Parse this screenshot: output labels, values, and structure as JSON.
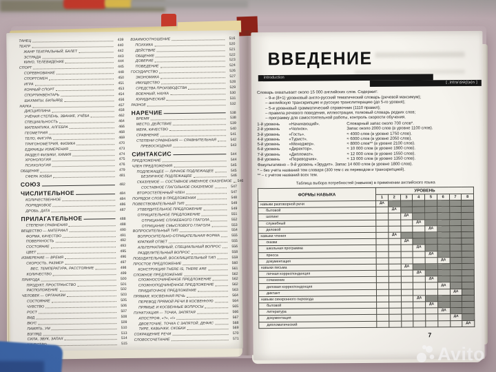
{
  "palette": {
    "bg": "#c7b5ba",
    "page": "#f3f1ea",
    "ink": "#262626",
    "bar": "#161616",
    "red": "#c5392b",
    "blue": "#3c69ae",
    "cell-dark": "#8f9089",
    "cell-light": "#f2f0e9",
    "wm": "rgba(255,255,255,0.85)"
  },
  "watermark": {
    "brand": "Avito"
  },
  "left_page": {
    "toc_col1": [
      {
        "t": "ТАНЕЦ",
        "p": "439",
        "s": "0"
      },
      {
        "t": "ТЕАТР",
        "p": "440",
        "s": "0"
      },
      {
        "t": "ЖАНР ТЕАТРАЛЬНЫЙ, БАЛЕТ",
        "p": "442",
        "s": "1"
      },
      {
        "t": "ЭСТРАДА",
        "p": "443",
        "s": "1"
      },
      {
        "t": "КИНО, ТЕЛЕВИДЕНИЕ",
        "p": "444",
        "s": "1"
      },
      {
        "t": "СПОРТ",
        "p": "445",
        "s": "0"
      },
      {
        "t": "СОРЕВНОВАНИЕ",
        "p": "448",
        "s": "1"
      },
      {
        "t": "СПОРТСМЕН",
        "p": "450",
        "s": "1"
      },
      {
        "t": "ИГРА",
        "p": "451",
        "s": "1"
      },
      {
        "t": "КОННЫЙ СПОРТ",
        "p": "453",
        "s": "1"
      },
      {
        "t": "СПОРТИНВЕНТАРЬ",
        "p": "454",
        "s": "1"
      },
      {
        "t": "ШАХМАТЫ, БИЛЬЯРД",
        "p": "456",
        "s": "1"
      },
      {
        "t": "НАУКА",
        "p": "457",
        "s": "0"
      },
      {
        "t": "ДИСЦИПЛИНА",
        "p": "458",
        "s": "1"
      },
      {
        "t": "УЧЁНАЯ СТЕПЕНЬ, ЗВАНИЕ, УЧЁБА",
        "p": "462",
        "s": "1"
      },
      {
        "t": "СПЕЦИАЛЬНОСТЬ",
        "p": "464",
        "s": "1"
      },
      {
        "t": "МАТЕМАТИКА, АЛГЕБРА",
        "p": "466",
        "s": "1"
      },
      {
        "t": "ГЕОМЕТРИЯ",
        "p": "468",
        "s": "1"
      },
      {
        "t": "ТЕЛО, ФИГУРА",
        "p": "469",
        "s": "1"
      },
      {
        "t": "ТРИГОНОМЕТРИЯ, ФИЗИКА",
        "p": "470",
        "s": "1"
      },
      {
        "t": "ЕДИНИЦЫ ИЗМЕРЕНИЯ",
        "p": "473",
        "s": "1"
      },
      {
        "t": "РАЗДЕЛ ФИЗИКИ, ХИМИЯ",
        "p": "474",
        "s": "1"
      },
      {
        "t": "ХРОНОЛОГИЯ",
        "p": "475",
        "s": "1"
      },
      {
        "t": "ПСИХОЛОГИЯ",
        "p": "476",
        "s": "1"
      },
      {
        "t": "ОБЩЕНИЕ",
        "p": "479",
        "s": "0"
      },
      {
        "t": "СФЕРА ХОББИ",
        "p": "481",
        "s": "1"
      },
      {
        "t": "СОЮЗ",
        "p": "482",
        "s": "h"
      },
      {
        "t": "ЧИСЛИТЕЛЬНОЕ",
        "p": "484",
        "s": "h"
      },
      {
        "t": "КОЛИЧЕСТВЕННОЕ",
        "p": "484",
        "s": "1"
      },
      {
        "t": "ПОРЯДКОВОЕ",
        "p": "486",
        "s": "1"
      },
      {
        "t": "ДРОБЬ, ДАТА",
        "p": "487",
        "s": "1"
      },
      {
        "t": "ПРИЛАГАТЕЛЬНОЕ",
        "p": "488",
        "s": "h"
      },
      {
        "t": "СТЕПЕНИ СРАВНЕНИЯ",
        "p": "488",
        "s": "1"
      },
      {
        "t": "ВЕЩЕСТВО — МАТЕРИАЛ",
        "p": "490",
        "s": "0"
      },
      {
        "t": "ФОРМА, КАЧЕСТВО",
        "p": "491",
        "s": "1"
      },
      {
        "t": "ПОВЕРХНОСТЬ",
        "p": "492",
        "s": "1"
      },
      {
        "t": "СОСТОЯНИЕ",
        "p": "493",
        "s": "1"
      },
      {
        "t": "ЦВЕТ",
        "p": "495",
        "s": "1"
      },
      {
        "t": "ИЗМЕРЕНИЕ — ВРЕМЯ",
        "p": "496",
        "s": "0"
      },
      {
        "t": "СКОРОСТЬ, РАЗМЕР",
        "p": "497",
        "s": "1"
      },
      {
        "t": "ВЕС, ТЕМПЕРАТУРА, РАССТОЯНИЕ",
        "p": "498",
        "s": "2"
      },
      {
        "t": "КОЛИЧЕСТВО",
        "p": "499",
        "s": "1"
      },
      {
        "t": "ПРИРОДА",
        "p": "500",
        "s": "0"
      },
      {
        "t": "ПРОДУКТ, ПРОСТРАНСТВО",
        "p": "501",
        "s": "1"
      },
      {
        "t": "РАСПОЛОЖЕНИЕ",
        "p": "502",
        "s": "1"
      },
      {
        "t": "ЧЕЛОВЕК — ОРГАНИЗМ",
        "p": "503",
        "s": "0"
      },
      {
        "t": "СОСТОЯНИЕ",
        "p": "505",
        "s": "1"
      },
      {
        "t": "ЧУВСТВО",
        "p": "506",
        "s": "1"
      },
      {
        "t": "РОСТ",
        "p": "507",
        "s": "1"
      },
      {
        "t": "ВИД",
        "p": "508",
        "s": "1"
      },
      {
        "t": "ВКУС",
        "p": "509",
        "s": "1"
      },
      {
        "t": "ПАМЯТЬ, УМ",
        "p": "510",
        "s": "1"
      },
      {
        "t": "ВЗГЛЯД",
        "p": "513",
        "s": "1"
      },
      {
        "t": "СИЛА, ЗВУК, ЗАПАХ",
        "p": "514",
        "s": "1"
      },
      {
        "t": "КАЧЕСТВО",
        "p": "515",
        "s": "1"
      }
    ],
    "toc_col2": [
      {
        "t": "ВЗАИМООТНОШЕНИЕ",
        "p": "516",
        "s": "0"
      },
      {
        "t": "ПСИХИКА",
        "p": "520",
        "s": "1"
      },
      {
        "t": "ДЕЙСТВИЕ",
        "p": "521",
        "s": "1"
      },
      {
        "t": "ОБЩЕНИЕ",
        "p": "522",
        "s": "1"
      },
      {
        "t": "ДОВЕРИЕ",
        "p": "523",
        "s": "1"
      },
      {
        "t": "ПОВЕДЕНИЕ",
        "p": "524",
        "s": "1"
      },
      {
        "t": "ГОСУДАРСТВО",
        "p": "526",
        "s": "0"
      },
      {
        "t": "ЭКОНОМИКА",
        "p": "527",
        "s": "1"
      },
      {
        "t": "ИМУЩЕСТВО",
        "p": "528",
        "s": "1"
      },
      {
        "t": "СРЕДСТВА ПРОИЗВОДСТВА",
        "p": "529",
        "s": "1"
      },
      {
        "t": "ВОЕННЫЙ, НАУКА",
        "p": "530",
        "s": "1"
      },
      {
        "t": "ЮРИДИЧЕСКИЙ",
        "p": "531",
        "s": "1"
      },
      {
        "t": "РАЗНОЕ",
        "p": "532",
        "s": "0"
      },
      {
        "t": "НАРЕЧИЕ",
        "p": "538",
        "s": "h"
      },
      {
        "t": "ВРЕМЯ",
        "p": "538",
        "s": "1"
      },
      {
        "t": "МЕСТО, ДЕЙСТВИЕ",
        "p": "539",
        "s": "1"
      },
      {
        "t": "МЕРА, КАЧЕСТВО",
        "p": "540",
        "s": "1"
      },
      {
        "t": "СРАВНЕНИЕ",
        "p": "541",
        "s": "1"
      },
      {
        "t": "СТЕПЕНИ СРАВНЕНИЯ — СРАВНИТЕЛЬНАЯ",
        "p": "542",
        "s": "1"
      },
      {
        "t": "ПРЕВОСХОДНАЯ",
        "p": "543",
        "s": "2"
      },
      {
        "t": "СИНТАКСИС",
        "p": "544",
        "s": "h"
      },
      {
        "t": "ПРЕДЛОЖЕНИЕ",
        "p": "544",
        "s": "0"
      },
      {
        "t": "ЧЛЕН ПРЕДЛОЖЕНИЯ",
        "p": "545",
        "s": "0"
      },
      {
        "t": "ПОДЛЕЖАЩЕЕ — ЛИЧНОЕ ПОДЛЕЖАЩЕЕ",
        "p": "545",
        "s": "1"
      },
      {
        "t": "БЕЗЛИЧНОЕ ПОДЛЕЖАЩЕЕ",
        "p": "546",
        "s": "2"
      },
      {
        "t": "СКАЗУЕМОЕ — СОСТАВНОЕ ИМЕННОЕ СКАЗУЕМОЕ",
        "p": "546",
        "s": "1"
      },
      {
        "t": "СОСТАВНОЕ ГЛАГОЛЬНОЕ СКАЗУЕМОЕ",
        "p": "547",
        "s": "2"
      },
      {
        "t": "ВТОРОСТЕПЕННЫЙ ЧЛЕН",
        "p": "547",
        "s": "1"
      },
      {
        "t": "ПОРЯДОК СЛОВ В ПРЕДЛОЖЕНИИ",
        "p": "548",
        "s": "0"
      },
      {
        "t": "ПОВЕСТВОВАТЕЛЬНЫЙ ТИП",
        "p": "549",
        "s": "0"
      },
      {
        "t": "УТВЕРДИТЕЛЬНОЕ ПРЕДЛОЖЕНИЕ",
        "p": "549",
        "s": "1"
      },
      {
        "t": "ОТРИЦАТЕЛЬНОЕ ПРЕДЛОЖЕНИЕ",
        "p": "551",
        "s": "1"
      },
      {
        "t": "ОТРИЦАНИЕ СЛУЖЕБНОГО ГЛАГОЛА",
        "p": "552",
        "s": "2"
      },
      {
        "t": "ОТРИЦАНИЕ СМЫСЛОВОГО ГЛАГОЛА",
        "p": "553",
        "s": "2"
      },
      {
        "t": "ВОПРОСИТЕЛЬНЫЙ ТИП",
        "p": "554",
        "s": "0"
      },
      {
        "t": "ВОПРОСИТЕЛЬНО-ОТРИЦАТЕЛЬНАЯ ФОРМА",
        "p": "555",
        "s": "1"
      },
      {
        "t": "КРАТКИЙ ОТВЕТ",
        "p": "555",
        "s": "1"
      },
      {
        "t": "АЛЬТЕРНАТИВНЫЙ, СПЕЦИАЛЬНЫЙ ВОПРОС",
        "p": "556",
        "s": "1"
      },
      {
        "t": "РАЗДЕЛИТЕЛЬНЫЙ ВОПРОС",
        "p": "558",
        "s": "1"
      },
      {
        "t": "ПОБУДИТЕЛЬНЫЙ, ВОСКЛИЦАТЕЛЬНЫЙ ТИП",
        "p": "559",
        "s": "0"
      },
      {
        "t": "ПРОСТОЕ ПРЕДЛОЖЕНИЕ",
        "p": "560",
        "s": "0"
      },
      {
        "t": "КОНСТРУКЦИЯ THERE IS, THERE ARE",
        "p": "561",
        "s": "1"
      },
      {
        "t": "СЛОЖНОЕ ПРЕДЛОЖЕНИЕ",
        "p": "562",
        "s": "0"
      },
      {
        "t": "СЛОЖНОСОЧИНЁННОЕ ПРЕДЛОЖЕНИЕ",
        "p": "562",
        "s": "1"
      },
      {
        "t": "СЛОЖНОПОДЧИНЁННОЕ ПРЕДЛОЖЕНИЕ",
        "p": "562",
        "s": "1"
      },
      {
        "t": "ПРИДАТОЧНОЕ ПРЕДЛОЖЕНИЕ",
        "p": "563",
        "s": "1"
      },
      {
        "t": "ПРЯМАЯ, КОСВЕННАЯ РЕЧЬ",
        "p": "564",
        "s": "0"
      },
      {
        "t": "ПЕРЕВОД ПРЯМОЙ РЕЧИ В КОСВЕННУЮ",
        "p": "564",
        "s": "1"
      },
      {
        "t": "ПРЯМЫЕ И КОСВЕННЫЕ ВОПРОСЫ",
        "p": "565",
        "s": "1"
      },
      {
        "t": "ПУНКТУАЦИЯ — ТОЧКА, ЗАПЯТАЯ",
        "p": "566",
        "s": "0"
      },
      {
        "t": "АПОСТРОФ, «?», «!»",
        "p": "567",
        "s": "1"
      },
      {
        "t": "ДВОЕТОЧИЕ, ТОЧКА С ЗАПЯТОЙ, ДЕФИС",
        "p": "568",
        "s": "1"
      },
      {
        "t": "ТИРЕ, КАВЫЧКИ, СКОБКИ",
        "p": "569",
        "s": "1"
      },
      {
        "t": "СОКРАЩЕНИЕ РЕЧИ",
        "p": "570",
        "s": "0"
      },
      {
        "t": "СЛОВОСОЧЕТАНИЕ",
        "p": "571",
        "s": "0"
      }
    ]
  },
  "right_page": {
    "title": "ВВЕДЕНИЕ",
    "subtitle": "introduction",
    "transcription": "[ ˌintrəˈdʌkʃ(ə)n ]",
    "intro_line": "Словарь охватывает около 15 000 английских слов. Содержит:",
    "bullets": [
      "–  9-и (8+1) уровневый англо-русский тематический словарь (речевой максимум);",
      "–  английскую транскрипцию и русскую транслитерацию (до 5-го уровня);",
      "–  5-и уровневый грамматический справочник (1110 правил);",
      "–  правила речевого поведения, иллюстрации, толковый словарь редких слов;",
      "–  программу для самостоятельной работы, контроль скорости обучения."
    ],
    "levels": [
      {
        "l": "1-й уровень",
        "n": "«Начинающий».",
        "d": "Словарный запас около 700 слов*."
      },
      {
        "l": "2-й уровень",
        "n": "«Челнок».",
        "d": "Запас около 2000 слов (в уровне 1100 слов)."
      },
      {
        "l": "3-й уровень",
        "n": "«Гость».",
        "d": "≈ 4000 слов (в уровне 1750 слов)."
      },
      {
        "l": "4-й уровень",
        "n": "«Турист».",
        "d": "≈ 6000 слов (в уровне 2050 слов)."
      },
      {
        "l": "5-й уровень",
        "n": "«Менеджер».",
        "d": "≈ 8000 слов** (в уровне 2100 слов)."
      },
      {
        "l": "6-й уровень",
        "n": "«Директор».",
        "d": "≈ 10 000 слов (в уровне 1900 слов)."
      },
      {
        "l": "7-й уровень",
        "n": "«Дипломат».",
        "d": "≈ 12 000 слов (в уровне 1550 слов)."
      },
      {
        "l": "8-й уровень",
        "n": "«Переводчик».",
        "d": "≈ 13 000 слов (в уровне 1350 слов)."
      }
    ],
    "facultative": "Факультативно – 9-й уровень «Эрудит». Запас 14 600 слов (в уровне 1800 слов).",
    "footnotes": [
      "* – без учёта названий тем словаря (300 тем с их переводом и транскрипцией).",
      "** – с учётом названий всех тем."
    ],
    "table": {
      "caption": "Таблица выбора потребностей (навыков) в применении английского языка",
      "col_header": "ФОРМЫ НАВЫКА",
      "level_header": "УРОВЕНЬ",
      "levels": [
        "1",
        "2",
        "3",
        "4",
        "5",
        "6",
        "7",
        "8"
      ],
      "yes_label": "ДА",
      "rows": [
        {
          "t": "навыки разговорной речи",
          "sub": 0,
          "lv": 1
        },
        {
          "t": "бытовой",
          "sub": 1,
          "lv": 2
        },
        {
          "t": "шопинг",
          "sub": 1,
          "lv": 3
        },
        {
          "t": "служебный",
          "sub": 1,
          "lv": 4
        },
        {
          "t": "деловой",
          "sub": 1,
          "lv": 5
        },
        {
          "t": "навыки чтения",
          "sub": 0,
          "lv": 2
        },
        {
          "t": "сказки",
          "sub": 1,
          "lv": 3
        },
        {
          "t": "школьная программа",
          "sub": 1,
          "lv": 4
        },
        {
          "t": "пресса",
          "sub": 1,
          "lv": 5
        },
        {
          "t": "документация",
          "sub": 1,
          "lv": 6
        },
        {
          "t": "навыки письма",
          "sub": 0,
          "lv": 3
        },
        {
          "t": "личная корреспонденция",
          "sub": 1,
          "lv": 4
        },
        {
          "t": "сочинение",
          "sub": 1,
          "lv": 5
        },
        {
          "t": "деловая корреспонденция",
          "sub": 1,
          "lv": 6
        },
        {
          "t": "диктант",
          "sub": 1,
          "lv": 7
        },
        {
          "t": "навыки синхронного перевода",
          "sub": 0,
          "lv": 4
        },
        {
          "t": "бытовой",
          "sub": 1,
          "lv": 5
        },
        {
          "t": "литература",
          "sub": 1,
          "lv": 6
        },
        {
          "t": "документация",
          "sub": 1,
          "lv": 7
        },
        {
          "t": "дипломатический",
          "sub": 1,
          "lv": 8
        }
      ]
    },
    "page_number": "7"
  }
}
